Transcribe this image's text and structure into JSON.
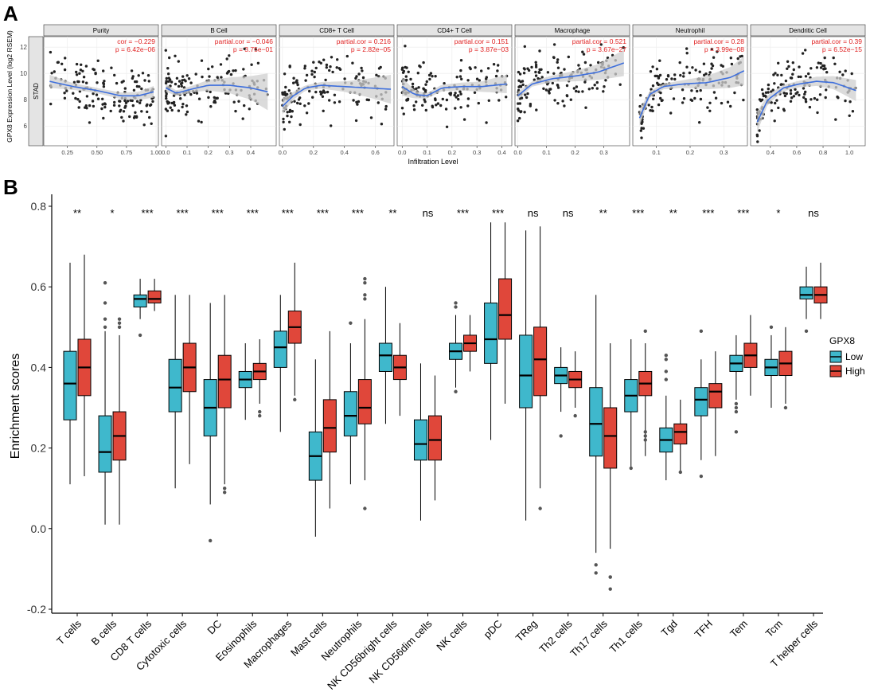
{
  "colors": {
    "low": "#3fb8cc",
    "high": "#e0473a",
    "fit": "#3e6fdc",
    "band": "#cfcfcf",
    "panel_bg": "#ffffff",
    "strip_bg": "#e4e4e4",
    "stat_text": "#e02020",
    "point": "#222222"
  },
  "panel_labels": {
    "a": "A",
    "b": "B"
  },
  "chart_data": [
    {
      "type": "scatter",
      "figure": "A",
      "ylabel": "GPX8 Expression Level (log2 RSEM)",
      "xlabel": "Infiltration Level",
      "row_label": "STAD",
      "ylim": [
        4.5,
        12.8
      ],
      "yticks": [
        6,
        8,
        10,
        12
      ],
      "panels": [
        {
          "title": "Purity",
          "stat1": "cor = −0.229",
          "stat2": "p = 6.42e−06",
          "xlim": [
            0.05,
            1.02
          ],
          "xticks": [
            "0.25",
            "0.50",
            "0.75",
            "1.00"
          ],
          "xtick_vals": [
            0.25,
            0.5,
            0.75,
            1.0
          ],
          "fit_x": [
            0.1,
            0.3,
            0.5,
            0.7,
            0.85,
            0.98
          ],
          "fit_y": [
            9.4,
            9.0,
            8.7,
            8.3,
            8.3,
            8.6
          ],
          "band_w": [
            0.5,
            0.25,
            0.2,
            0.25,
            0.3,
            0.45
          ],
          "points_x": [
            0.1,
            0.98
          ],
          "points_y": [
            7.0,
            10.6
          ]
        },
        {
          "title": "B Cell",
          "stat1": "partial.cor = −0.046",
          "stat2": "p = 3.75e−01",
          "xlim": [
            -0.02,
            0.52
          ],
          "xticks": [
            "0.0",
            "0.1",
            "0.2",
            "0.3",
            "0.4"
          ],
          "xtick_vals": [
            0.0,
            0.1,
            0.2,
            0.3,
            0.4
          ],
          "fit_x": [
            0.0,
            0.05,
            0.12,
            0.2,
            0.3,
            0.4,
            0.48
          ],
          "fit_y": [
            8.9,
            8.5,
            8.8,
            9.1,
            9.1,
            8.9,
            8.6
          ],
          "band_w": [
            0.3,
            0.2,
            0.25,
            0.4,
            0.6,
            0.9,
            1.4
          ],
          "points_x": [
            0.0,
            0.12
          ],
          "points_y": [
            7.0,
            10.5
          ]
        },
        {
          "title": "CD8+ T Cell",
          "stat1": "partial.cor = 0.216",
          "stat2": "p = 2.82e−05",
          "xlim": [
            -0.02,
            0.72
          ],
          "xticks": [
            "0.0",
            "0.2",
            "0.4",
            "0.6"
          ],
          "xtick_vals": [
            0.0,
            0.2,
            0.4,
            0.6
          ],
          "fit_x": [
            0.0,
            0.07,
            0.15,
            0.25,
            0.4,
            0.55,
            0.7
          ],
          "fit_y": [
            7.5,
            8.3,
            8.9,
            9.1,
            9.0,
            8.9,
            8.8
          ],
          "band_w": [
            0.6,
            0.3,
            0.2,
            0.25,
            0.4,
            0.7,
            1.1
          ],
          "points_x": [
            0.05,
            0.35
          ],
          "points_y": [
            7.2,
            10.6
          ]
        },
        {
          "title": "CD4+ T Cell",
          "stat1": "partial.cor = 0.151",
          "stat2": "p = 3.87e−03",
          "xlim": [
            -0.02,
            0.44
          ],
          "xticks": [
            "0.0",
            "0.1",
            "0.2",
            "0.3",
            "0.4"
          ],
          "xtick_vals": [
            0.0,
            0.1,
            0.2,
            0.3,
            0.4
          ],
          "fit_x": [
            0.0,
            0.05,
            0.1,
            0.16,
            0.24,
            0.32,
            0.42
          ],
          "fit_y": [
            9.0,
            8.4,
            8.3,
            8.9,
            9.0,
            9.0,
            9.2
          ],
          "band_w": [
            0.7,
            0.3,
            0.2,
            0.25,
            0.3,
            0.4,
            0.7
          ],
          "points_x": [
            0.05,
            0.3
          ],
          "points_y": [
            7.3,
            10.4
          ]
        },
        {
          "title": "Macrophage",
          "stat1": "partial.cor = 0.521",
          "stat2": "p = 3.67e−27",
          "xlim": [
            -0.01,
            0.39
          ],
          "xticks": [
            "0.0",
            "0.1",
            "0.2",
            "0.3"
          ],
          "xtick_vals": [
            0.0,
            0.1,
            0.2,
            0.3
          ],
          "fit_x": [
            0.0,
            0.05,
            0.12,
            0.2,
            0.28,
            0.37
          ],
          "fit_y": [
            8.3,
            9.2,
            9.6,
            9.8,
            10.1,
            10.8
          ],
          "band_w": [
            0.3,
            0.2,
            0.25,
            0.4,
            0.6,
            1.0
          ],
          "points_x": [
            0.02,
            0.3
          ],
          "points_y": [
            7.8,
            10.8
          ]
        },
        {
          "title": "Neutrophil",
          "stat1": "partial.cor = 0.28",
          "stat2": "p = 3.99e−08",
          "xlim": [
            0.03,
            0.37
          ],
          "xticks": [
            "0.1",
            "0.2",
            "0.3"
          ],
          "xtick_vals": [
            0.1,
            0.2,
            0.3
          ],
          "fit_x": [
            0.05,
            0.08,
            0.12,
            0.18,
            0.25,
            0.32,
            0.36
          ],
          "fit_y": [
            6.6,
            8.4,
            9.0,
            9.2,
            9.3,
            9.7,
            10.2
          ],
          "band_w": [
            0.6,
            0.25,
            0.2,
            0.3,
            0.5,
            0.8,
            1.1
          ],
          "points_x": [
            0.1,
            0.2
          ],
          "points_y": [
            7.5,
            10.5
          ]
        },
        {
          "title": "Dendritic Cell",
          "stat1": "partial.cor = 0.39",
          "stat2": "p = 6.52e−15",
          "xlim": [
            0.25,
            1.12
          ],
          "xticks": [
            "0.4",
            "0.6",
            "0.8",
            "1.0"
          ],
          "xtick_vals": [
            0.4,
            0.6,
            0.8,
            1.0
          ],
          "fit_x": [
            0.3,
            0.38,
            0.5,
            0.62,
            0.75,
            0.88,
            1.05
          ],
          "fit_y": [
            6.3,
            8.0,
            8.9,
            9.2,
            9.4,
            9.3,
            8.7
          ],
          "band_w": [
            0.8,
            0.35,
            0.25,
            0.25,
            0.35,
            0.5,
            0.8
          ],
          "points_x": [
            0.4,
            0.8
          ],
          "points_y": [
            7.3,
            10.6
          ]
        }
      ]
    },
    {
      "type": "boxplot",
      "figure": "B",
      "ylabel": "Enrichment scores",
      "ylim": [
        -0.2,
        0.8
      ],
      "yticks": [
        "0.8",
        "0.6",
        "0.4",
        "0.2",
        "0.0",
        "-0.2"
      ],
      "ytick_vals": [
        0.8,
        0.6,
        0.4,
        0.2,
        0.0,
        -0.2
      ],
      "legend": {
        "title": "GPX8",
        "items": [
          "Low",
          "High"
        ],
        "position": "right"
      },
      "categories": [
        "T cells",
        "B cells",
        "CD8 T cells",
        "Cytotoxic cells",
        "DC",
        "Eosinophils",
        "Macrophages",
        "Mast cells",
        "Neutrophils",
        "NK CD56bright cells",
        "NK CD56dim cells",
        "NK cells",
        "pDC",
        "TReg",
        "Th2 cells",
        "Th17 cells",
        "Th1 cells",
        "Tgd",
        "TFH",
        "Tem",
        "Tcm",
        "T helper cells"
      ],
      "significance": [
        "**",
        "*",
        "***",
        "***",
        "***",
        "***",
        "***",
        "***",
        "***",
        "**",
        "ns",
        "***",
        "***",
        "ns",
        "ns",
        "**",
        "***",
        "**",
        "***",
        "***",
        "*",
        "ns"
      ],
      "series": [
        {
          "name": "Low",
          "boxes": [
            [
              0.11,
              0.27,
              0.36,
              0.44,
              0.66
            ],
            [
              0.01,
              0.14,
              0.19,
              0.28,
              0.49
            ],
            [
              0.52,
              0.55,
              0.57,
              0.58,
              0.62
            ],
            [
              0.1,
              0.29,
              0.35,
              0.42,
              0.58
            ],
            [
              0.06,
              0.23,
              0.3,
              0.37,
              0.56
            ],
            [
              0.27,
              0.35,
              0.37,
              0.39,
              0.46
            ],
            [
              0.24,
              0.4,
              0.45,
              0.49,
              0.58
            ],
            [
              -0.02,
              0.12,
              0.18,
              0.24,
              0.42
            ],
            [
              0.11,
              0.23,
              0.28,
              0.34,
              0.46
            ],
            [
              0.26,
              0.39,
              0.43,
              0.46,
              0.6
            ],
            [
              0.02,
              0.17,
              0.21,
              0.27,
              0.41
            ],
            [
              0.35,
              0.42,
              0.44,
              0.46,
              0.53
            ],
            [
              0.22,
              0.41,
              0.47,
              0.56,
              0.76
            ],
            [
              0.02,
              0.3,
              0.38,
              0.48,
              0.74
            ],
            [
              0.29,
              0.36,
              0.38,
              0.4,
              0.45
            ],
            [
              -0.06,
              0.18,
              0.26,
              0.35,
              0.58
            ],
            [
              0.15,
              0.29,
              0.33,
              0.37,
              0.47
            ],
            [
              0.12,
              0.19,
              0.22,
              0.25,
              0.33
            ],
            [
              0.17,
              0.28,
              0.32,
              0.35,
              0.42
            ],
            [
              0.32,
              0.39,
              0.41,
              0.43,
              0.48
            ],
            [
              0.3,
              0.38,
              0.4,
              0.42,
              0.48
            ],
            [
              0.52,
              0.57,
              0.58,
              0.6,
              0.65
            ]
          ]
        },
        {
          "name": "High",
          "boxes": [
            [
              0.13,
              0.33,
              0.4,
              0.47,
              0.68
            ],
            [
              0.01,
              0.17,
              0.23,
              0.29,
              0.48
            ],
            [
              0.54,
              0.56,
              0.57,
              0.59,
              0.62
            ],
            [
              0.16,
              0.34,
              0.4,
              0.46,
              0.58
            ],
            [
              0.11,
              0.3,
              0.37,
              0.43,
              0.58
            ],
            [
              0.31,
              0.37,
              0.39,
              0.41,
              0.47
            ],
            [
              0.33,
              0.46,
              0.5,
              0.54,
              0.66
            ],
            [
              0.05,
              0.19,
              0.25,
              0.32,
              0.49
            ],
            [
              0.12,
              0.26,
              0.3,
              0.37,
              0.52
            ],
            [
              0.28,
              0.37,
              0.4,
              0.43,
              0.51
            ],
            [
              0.07,
              0.17,
              0.22,
              0.28,
              0.38
            ],
            [
              0.39,
              0.44,
              0.46,
              0.48,
              0.53
            ],
            [
              0.31,
              0.47,
              0.53,
              0.62,
              0.76
            ],
            [
              0.1,
              0.33,
              0.42,
              0.5,
              0.75
            ],
            [
              0.3,
              0.35,
              0.37,
              0.39,
              0.44
            ],
            [
              -0.05,
              0.15,
              0.23,
              0.3,
              0.46
            ],
            [
              0.18,
              0.33,
              0.36,
              0.39,
              0.46
            ],
            [
              0.14,
              0.21,
              0.24,
              0.26,
              0.32
            ],
            [
              0.18,
              0.3,
              0.34,
              0.36,
              0.44
            ],
            [
              0.33,
              0.4,
              0.43,
              0.46,
              0.53
            ],
            [
              0.31,
              0.38,
              0.41,
              0.44,
              0.5
            ],
            [
              0.52,
              0.56,
              0.58,
              0.6,
              0.66
            ]
          ]
        }
      ],
      "outliers": [
        [
          [],
          []
        ],
        [
          [
            0.61,
            0.56,
            0.52,
            0.5
          ],
          [
            0.52,
            0.51,
            0.5
          ]
        ],
        [
          [
            0.48
          ],
          []
        ],
        [
          [],
          []
        ],
        [
          [
            -0.03
          ],
          [
            0.1,
            0.09
          ]
        ],
        [
          [],
          [
            0.29,
            0.28
          ]
        ],
        [
          [],
          [
            0.32
          ]
        ],
        [
          [],
          []
        ],
        [
          [
            0.51
          ],
          [
            0.62,
            0.61,
            0.58,
            0.57,
            0.05
          ]
        ],
        [
          [],
          []
        ],
        [
          [],
          []
        ],
        [
          [
            0.56,
            0.55,
            0.34
          ],
          []
        ],
        [
          [],
          []
        ],
        [
          [],
          [
            0.05
          ]
        ],
        [
          [
            0.23
          ],
          [
            0.28
          ]
        ],
        [
          [
            -0.11,
            -0.09
          ],
          [
            -0.12,
            -0.12,
            -0.15
          ]
        ],
        [
          [
            0.15
          ],
          [
            0.49,
            0.24,
            0.23,
            0.22
          ]
        ],
        [
          [
            0.43,
            0.42,
            0.39,
            0.37
          ],
          [
            0.14
          ]
        ],
        [
          [
            0.49,
            0.13
          ],
          []
        ],
        [
          [
            0.31,
            0.3,
            0.29,
            0.24
          ],
          []
        ],
        [
          [
            0.5
          ],
          [
            0.3
          ]
        ],
        [
          [
            0.49
          ],
          []
        ]
      ]
    }
  ]
}
